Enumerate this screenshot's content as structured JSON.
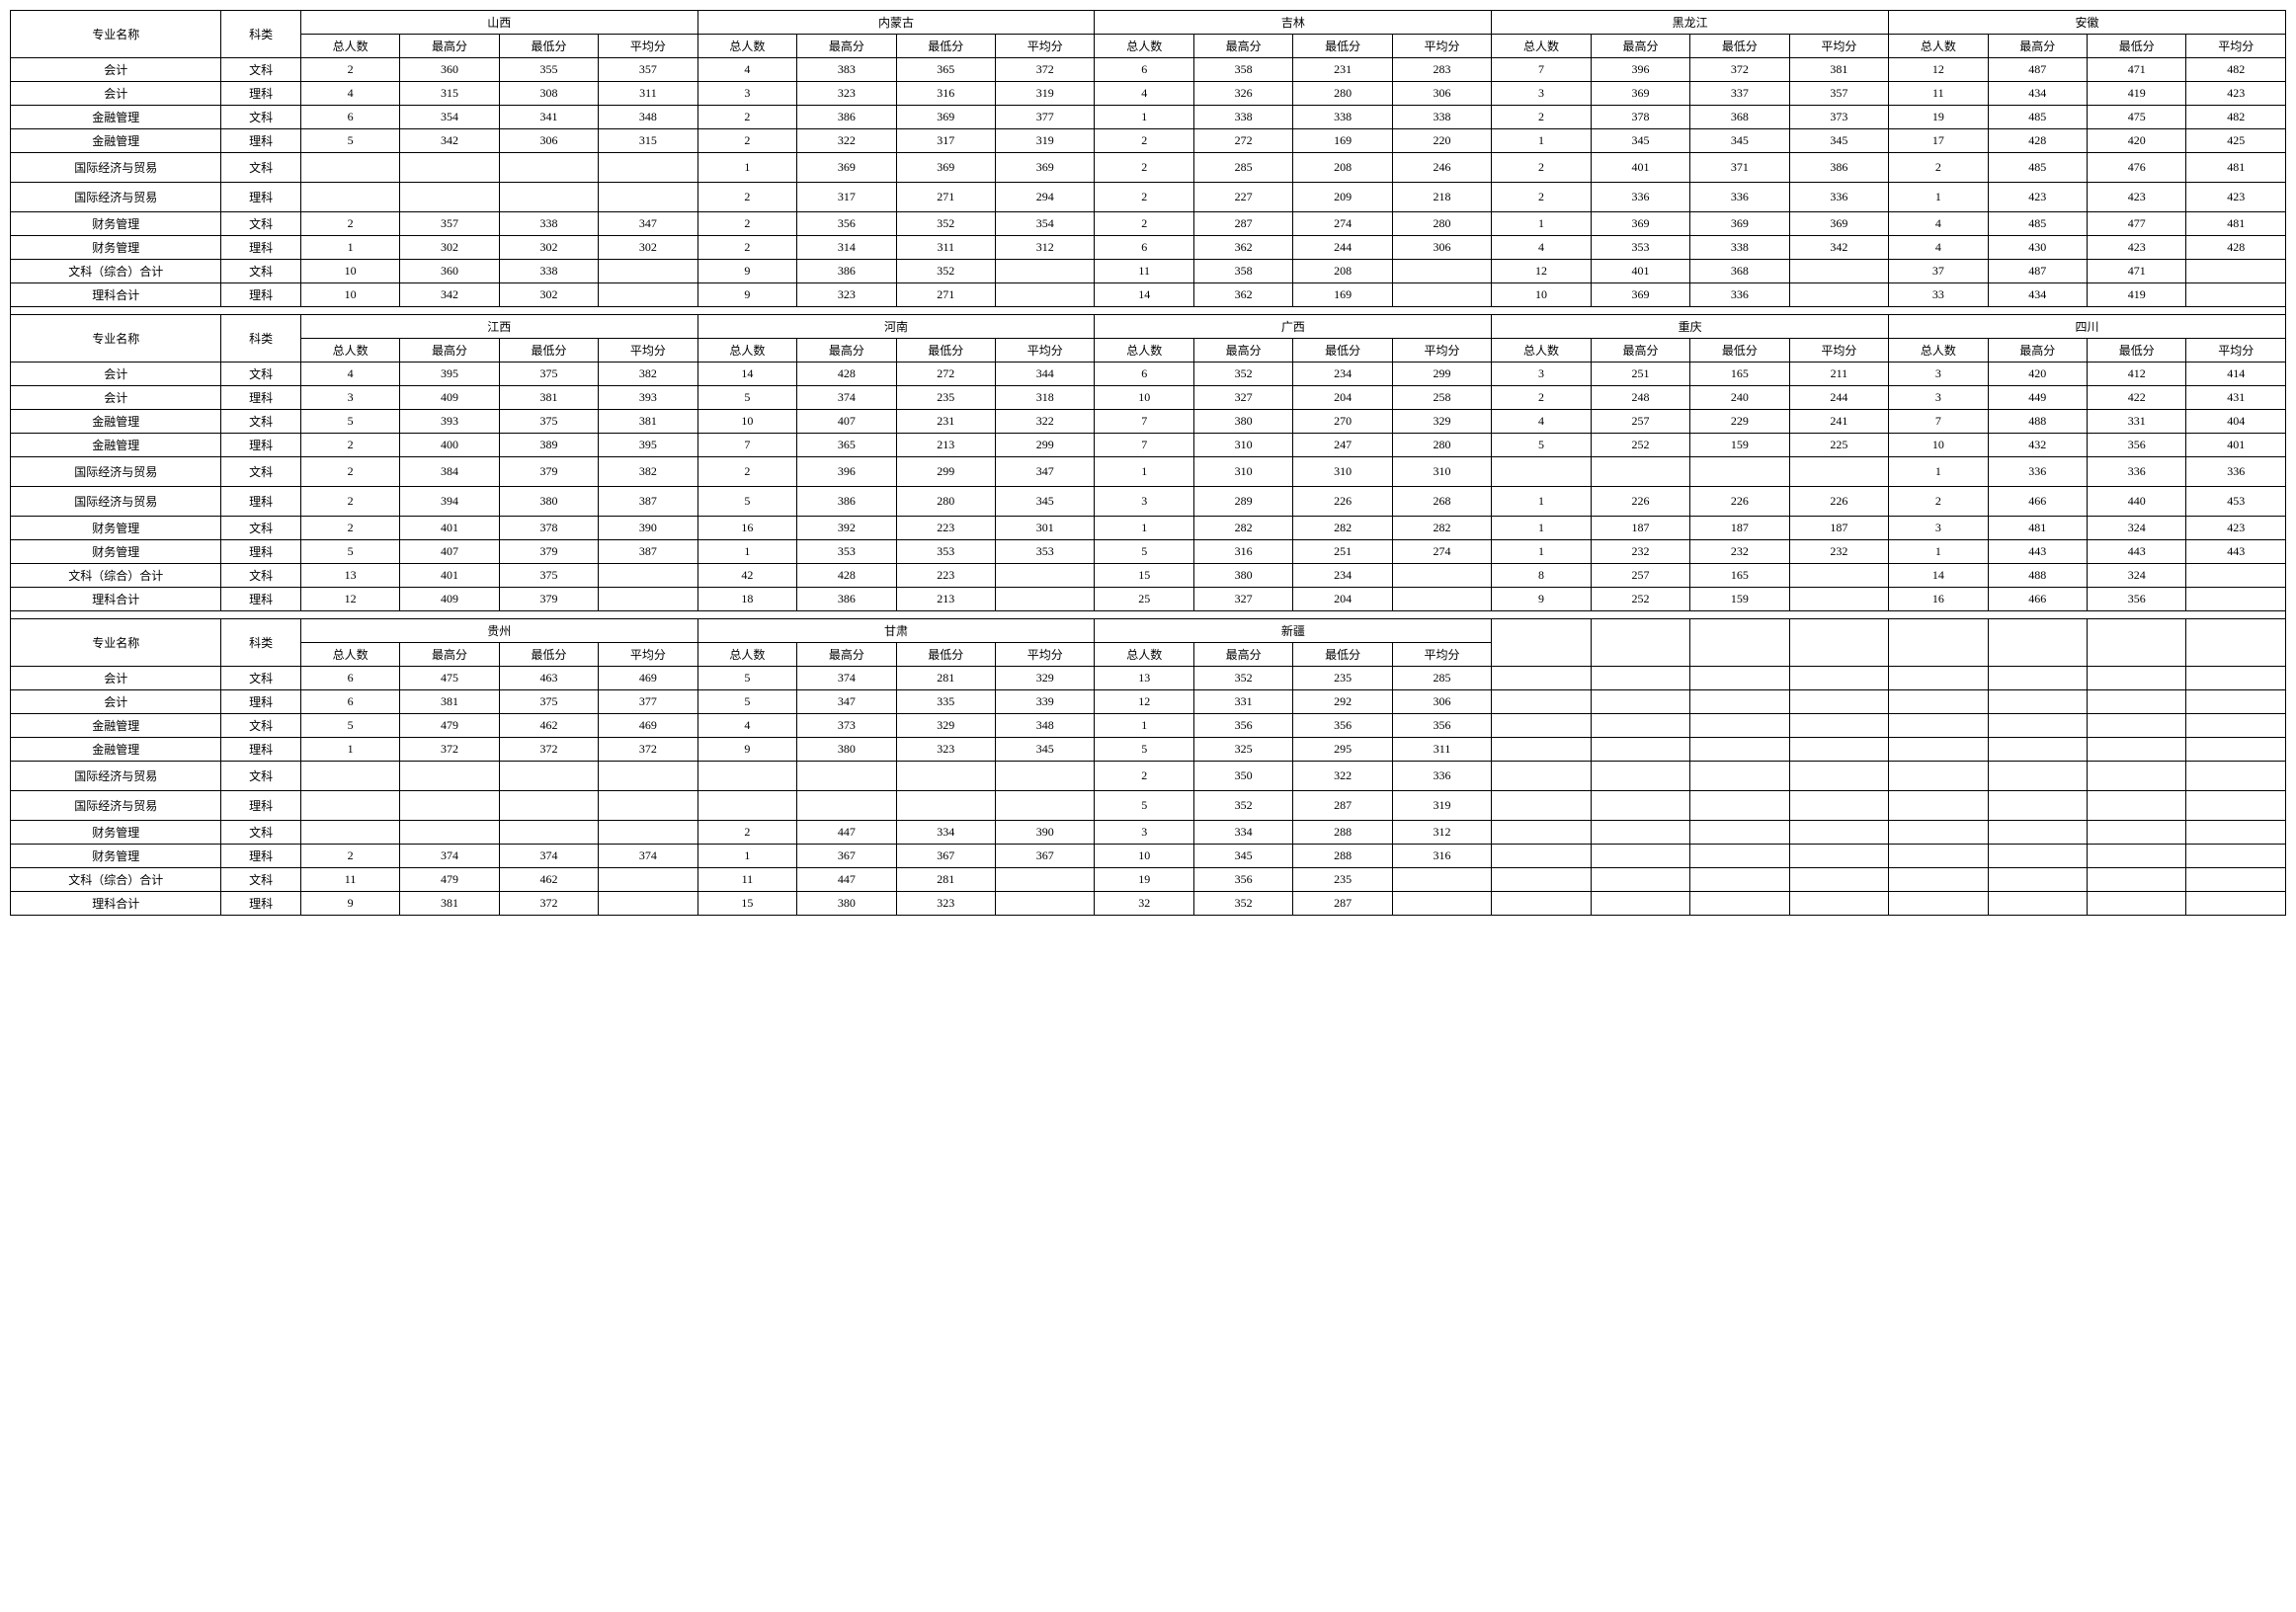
{
  "headers": {
    "major": "专业名称",
    "type": "科类",
    "subcols": [
      "总人数",
      "最高分",
      "最低分",
      "平均分"
    ]
  },
  "majors": [
    "会计",
    "会计",
    "金融管理",
    "金融管理",
    "国际经济与贸易",
    "国际经济与贸易",
    "财务管理",
    "财务管理",
    "文科（综合）合计",
    "理科合计"
  ],
  "types": [
    "文科",
    "理科",
    "文科",
    "理科",
    "文科",
    "理科",
    "文科",
    "理科",
    "文科",
    "理科"
  ],
  "tallRows": [
    4,
    5
  ],
  "sections": [
    {
      "provinces": [
        "山西",
        "内蒙古",
        "吉林",
        "黑龙江",
        "安徽"
      ],
      "rows": [
        [
          [
            "2",
            "360",
            "355",
            "357"
          ],
          [
            "4",
            "383",
            "365",
            "372"
          ],
          [
            "6",
            "358",
            "231",
            "283"
          ],
          [
            "7",
            "396",
            "372",
            "381"
          ],
          [
            "12",
            "487",
            "471",
            "482"
          ]
        ],
        [
          [
            "4",
            "315",
            "308",
            "311"
          ],
          [
            "3",
            "323",
            "316",
            "319"
          ],
          [
            "4",
            "326",
            "280",
            "306"
          ],
          [
            "3",
            "369",
            "337",
            "357"
          ],
          [
            "11",
            "434",
            "419",
            "423"
          ]
        ],
        [
          [
            "6",
            "354",
            "341",
            "348"
          ],
          [
            "2",
            "386",
            "369",
            "377"
          ],
          [
            "1",
            "338",
            "338",
            "338"
          ],
          [
            "2",
            "378",
            "368",
            "373"
          ],
          [
            "19",
            "485",
            "475",
            "482"
          ]
        ],
        [
          [
            "5",
            "342",
            "306",
            "315"
          ],
          [
            "2",
            "322",
            "317",
            "319"
          ],
          [
            "2",
            "272",
            "169",
            "220"
          ],
          [
            "1",
            "345",
            "345",
            "345"
          ],
          [
            "17",
            "428",
            "420",
            "425"
          ]
        ],
        [
          [
            "",
            "",
            "",
            ""
          ],
          [
            "1",
            "369",
            "369",
            "369"
          ],
          [
            "2",
            "285",
            "208",
            "246"
          ],
          [
            "2",
            "401",
            "371",
            "386"
          ],
          [
            "2",
            "485",
            "476",
            "481"
          ]
        ],
        [
          [
            "",
            "",
            "",
            ""
          ],
          [
            "2",
            "317",
            "271",
            "294"
          ],
          [
            "2",
            "227",
            "209",
            "218"
          ],
          [
            "2",
            "336",
            "336",
            "336"
          ],
          [
            "1",
            "423",
            "423",
            "423"
          ]
        ],
        [
          [
            "2",
            "357",
            "338",
            "347"
          ],
          [
            "2",
            "356",
            "352",
            "354"
          ],
          [
            "2",
            "287",
            "274",
            "280"
          ],
          [
            "1",
            "369",
            "369",
            "369"
          ],
          [
            "4",
            "485",
            "477",
            "481"
          ]
        ],
        [
          [
            "1",
            "302",
            "302",
            "302"
          ],
          [
            "2",
            "314",
            "311",
            "312"
          ],
          [
            "6",
            "362",
            "244",
            "306"
          ],
          [
            "4",
            "353",
            "338",
            "342"
          ],
          [
            "4",
            "430",
            "423",
            "428"
          ]
        ],
        [
          [
            "10",
            "360",
            "338",
            ""
          ],
          [
            "9",
            "386",
            "352",
            ""
          ],
          [
            "11",
            "358",
            "208",
            ""
          ],
          [
            "12",
            "401",
            "368",
            ""
          ],
          [
            "37",
            "487",
            "471",
            ""
          ]
        ],
        [
          [
            "10",
            "342",
            "302",
            ""
          ],
          [
            "9",
            "323",
            "271",
            ""
          ],
          [
            "14",
            "362",
            "169",
            ""
          ],
          [
            "10",
            "369",
            "336",
            ""
          ],
          [
            "33",
            "434",
            "419",
            ""
          ]
        ]
      ]
    },
    {
      "provinces": [
        "江西",
        "河南",
        "广西",
        "重庆",
        "四川"
      ],
      "rows": [
        [
          [
            "4",
            "395",
            "375",
            "382"
          ],
          [
            "14",
            "428",
            "272",
            "344"
          ],
          [
            "6",
            "352",
            "234",
            "299"
          ],
          [
            "3",
            "251",
            "165",
            "211"
          ],
          [
            "3",
            "420",
            "412",
            "414"
          ]
        ],
        [
          [
            "3",
            "409",
            "381",
            "393"
          ],
          [
            "5",
            "374",
            "235",
            "318"
          ],
          [
            "10",
            "327",
            "204",
            "258"
          ],
          [
            "2",
            "248",
            "240",
            "244"
          ],
          [
            "3",
            "449",
            "422",
            "431"
          ]
        ],
        [
          [
            "5",
            "393",
            "375",
            "381"
          ],
          [
            "10",
            "407",
            "231",
            "322"
          ],
          [
            "7",
            "380",
            "270",
            "329"
          ],
          [
            "4",
            "257",
            "229",
            "241"
          ],
          [
            "7",
            "488",
            "331",
            "404"
          ]
        ],
        [
          [
            "2",
            "400",
            "389",
            "395"
          ],
          [
            "7",
            "365",
            "213",
            "299"
          ],
          [
            "7",
            "310",
            "247",
            "280"
          ],
          [
            "5",
            "252",
            "159",
            "225"
          ],
          [
            "10",
            "432",
            "356",
            "401"
          ]
        ],
        [
          [
            "2",
            "384",
            "379",
            "382"
          ],
          [
            "2",
            "396",
            "299",
            "347"
          ],
          [
            "1",
            "310",
            "310",
            "310"
          ],
          [
            "",
            "",
            "",
            ""
          ],
          [
            "1",
            "336",
            "336",
            "336"
          ]
        ],
        [
          [
            "2",
            "394",
            "380",
            "387"
          ],
          [
            "5",
            "386",
            "280",
            "345"
          ],
          [
            "3",
            "289",
            "226",
            "268"
          ],
          [
            "1",
            "226",
            "226",
            "226"
          ],
          [
            "2",
            "466",
            "440",
            "453"
          ]
        ],
        [
          [
            "2",
            "401",
            "378",
            "390"
          ],
          [
            "16",
            "392",
            "223",
            "301"
          ],
          [
            "1",
            "282",
            "282",
            "282"
          ],
          [
            "1",
            "187",
            "187",
            "187"
          ],
          [
            "3",
            "481",
            "324",
            "423"
          ]
        ],
        [
          [
            "5",
            "407",
            "379",
            "387"
          ],
          [
            "1",
            "353",
            "353",
            "353"
          ],
          [
            "5",
            "316",
            "251",
            "274"
          ],
          [
            "1",
            "232",
            "232",
            "232"
          ],
          [
            "1",
            "443",
            "443",
            "443"
          ]
        ],
        [
          [
            "13",
            "401",
            "375",
            ""
          ],
          [
            "42",
            "428",
            "223",
            ""
          ],
          [
            "15",
            "380",
            "234",
            ""
          ],
          [
            "8",
            "257",
            "165",
            ""
          ],
          [
            "14",
            "488",
            "324",
            ""
          ]
        ],
        [
          [
            "12",
            "409",
            "379",
            ""
          ],
          [
            "18",
            "386",
            "213",
            ""
          ],
          [
            "25",
            "327",
            "204",
            ""
          ],
          [
            "9",
            "252",
            "159",
            ""
          ],
          [
            "16",
            "466",
            "356",
            ""
          ]
        ]
      ]
    },
    {
      "provinces": [
        "贵州",
        "甘肃",
        "新疆"
      ],
      "blankProvinces": 2,
      "rows": [
        [
          [
            "6",
            "475",
            "463",
            "469"
          ],
          [
            "5",
            "374",
            "281",
            "329"
          ],
          [
            "13",
            "352",
            "235",
            "285"
          ]
        ],
        [
          [
            "6",
            "381",
            "375",
            "377"
          ],
          [
            "5",
            "347",
            "335",
            "339"
          ],
          [
            "12",
            "331",
            "292",
            "306"
          ]
        ],
        [
          [
            "5",
            "479",
            "462",
            "469"
          ],
          [
            "4",
            "373",
            "329",
            "348"
          ],
          [
            "1",
            "356",
            "356",
            "356"
          ]
        ],
        [
          [
            "1",
            "372",
            "372",
            "372"
          ],
          [
            "9",
            "380",
            "323",
            "345"
          ],
          [
            "5",
            "325",
            "295",
            "311"
          ]
        ],
        [
          [
            "",
            "",
            "",
            ""
          ],
          [
            "",
            "",
            "",
            ""
          ],
          [
            "2",
            "350",
            "322",
            "336"
          ]
        ],
        [
          [
            "",
            "",
            "",
            ""
          ],
          [
            "",
            "",
            "",
            ""
          ],
          [
            "5",
            "352",
            "287",
            "319"
          ]
        ],
        [
          [
            "",
            "",
            "",
            ""
          ],
          [
            "2",
            "447",
            "334",
            "390"
          ],
          [
            "3",
            "334",
            "288",
            "312"
          ]
        ],
        [
          [
            "2",
            "374",
            "374",
            "374"
          ],
          [
            "1",
            "367",
            "367",
            "367"
          ],
          [
            "10",
            "345",
            "288",
            "316"
          ]
        ],
        [
          [
            "11",
            "479",
            "462",
            ""
          ],
          [
            "11",
            "447",
            "281",
            ""
          ],
          [
            "19",
            "356",
            "235",
            ""
          ]
        ],
        [
          [
            "9",
            "381",
            "372",
            ""
          ],
          [
            "15",
            "380",
            "323",
            ""
          ],
          [
            "32",
            "352",
            "287",
            ""
          ]
        ]
      ]
    }
  ]
}
